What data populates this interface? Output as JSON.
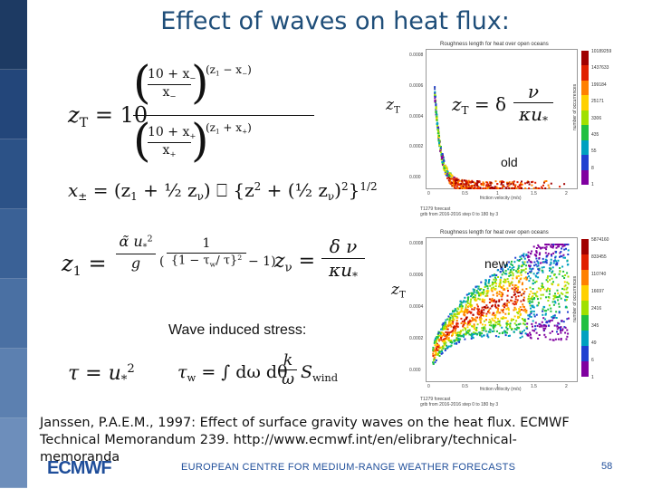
{
  "slide": {
    "title": "Effect of waves on heat flux:",
    "label_zt_top": "z",
    "label_zt_top_sub": "T",
    "label_zt_mid": "z",
    "label_zt_mid_sub": "T",
    "label_old": "old",
    "label_new": "new",
    "wave_stress_label": "Wave induced stress:",
    "reference": "Janssen, P.A.E.M., 1997: Effect of surface gravity waves on the heat flux. ECMWF Technical Memorandum 239. http://www.ecmwf.int/en/elibrary/technical-memoranda",
    "footer_logo": "ECMWF",
    "footer_centre": "EUROPEAN CENTRE FOR MEDIUM-RANGE WEATHER FORECASTS",
    "page_number": "58"
  },
  "equations": {
    "zt_lhs": "z",
    "zt_lhs_sub": "T",
    "zt_eq": "= 10",
    "num_base": "10 + x",
    "num_base_sub": "−",
    "num_den": "x",
    "num_den_sub": "−",
    "num_exp": "(z",
    "num_exp_rest": "− x",
    "num_exp_sub2": "−",
    "num_exp_close": ")",
    "den_base": "10 + x",
    "den_base_sub": "+",
    "den_den": "x",
    "den_den_sub": "+",
    "den_exp": "(z",
    "den_exp_rest": "+ x",
    "den_exp_sub2": "+",
    "den_exp_close": ")",
    "xpm": "x",
    "xpm_sub": "±",
    "xpm_rhs": "= (z",
    "xpm_rhs2": "+ ½ z",
    "xpm_rhs3": ") ⎕ {z",
    "xpm_rhs4": "+ (½ z",
    "xpm_rhs5": ")",
    "xpm_rhs6": "}",
    "xpm_exp": "1/2",
    "z1_lhs": "z",
    "z1_lhs_sub": "1",
    "z1_eq": "=",
    "z1_num": "α̃ u",
    "z1_num_sub": "*",
    "z1_den": "g",
    "z1_frac_num": "1",
    "z1_frac_den": "{1 − τ",
    "z1_frac_den_sub": "w",
    "z1_frac_den2": "/ τ}",
    "z1_tail": "− 1)",
    "zv_lhs": "z",
    "zv_lhs_sub": "ν",
    "zv_eq": "=",
    "zv_num": "δ ν",
    "zv_den": "κu",
    "zv_den_sub": "*",
    "tau_lhs": "τ = u",
    "tau_sub": "*",
    "tauw_lhs": "τ",
    "tauw_sub": "w",
    "tauw_eq": "= ∫ dω dθ",
    "tauw_num": "k",
    "tauw_den": "ω",
    "tauw_S": "S",
    "tauw_S_sub": "wind"
  },
  "plots": {
    "top": {
      "title": "Roughness length for heat over open oceans",
      "inset_lhs": "z",
      "inset_lhs_sub": "T",
      "inset_eq": "= δ",
      "inset_num": "ν",
      "inset_den": "κu",
      "inset_den_sub": "*",
      "xlabel": "friction velocity (m/s)",
      "ylabel": "",
      "yticks": [
        "0.0008",
        "0.0006",
        "0.0004",
        "0.0002",
        "0.000"
      ],
      "xticks": [
        "0",
        "0.5",
        "1",
        "1.5",
        "2"
      ],
      "colorbar_labels": [
        "10189259",
        "1437633",
        "199184",
        "25171",
        "3306",
        "435",
        "55",
        "8",
        "1"
      ],
      "colorbar_title": "number of occurrences",
      "caption": "T1279 forecast\ngrib from 2016-2016 step 0 to 180 by 3"
    },
    "bottom": {
      "title": "Roughness length for heat over open oceans",
      "xlabel": "friction velocity (m/s)",
      "yticks": [
        "0.0008",
        "0.0006",
        "0.0004",
        "0.0002",
        "0.000"
      ],
      "xticks": [
        "0",
        "0.5",
        "1",
        "1.5",
        "2"
      ],
      "colorbar_labels": [
        "5874160",
        "833455",
        "110740",
        "16697",
        "2416",
        "345",
        "49",
        "6",
        "1"
      ],
      "colorbar_title": "number of occurrences",
      "caption": "T1279 forecast\ngrib from 2016-2016 step 0 to 180 by 3"
    }
  },
  "colors": {
    "title": "#1f4e79",
    "brand": "#1f4e9a",
    "strip": [
      "#1d3a63",
      "#23467a",
      "#2c5287",
      "#3a6196",
      "#4a70a3",
      "#5c80b0",
      "#6d8ebb"
    ]
  }
}
